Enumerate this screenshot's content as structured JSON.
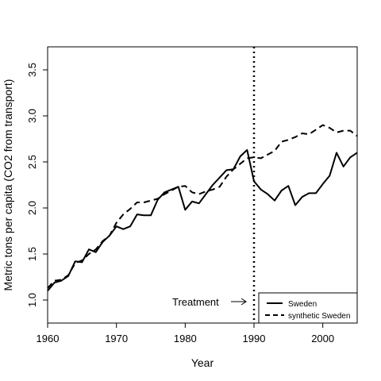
{
  "chart_data": {
    "type": "line",
    "xlabel": "Year",
    "ylabel": "Metric tons per capita (CO2 from transport)",
    "xlim": [
      1960,
      2005
    ],
    "ylim": [
      0.75,
      3.75
    ],
    "x_ticks": [
      1960,
      1970,
      1980,
      1990,
      2000
    ],
    "y_ticks": [
      1.0,
      1.5,
      2.0,
      2.5,
      3.0,
      3.5
    ],
    "x_tick_labels": [
      "1960",
      "1970",
      "1980",
      "1990",
      "2000"
    ],
    "y_tick_labels": [
      "1.0",
      "1.5",
      "2.0",
      "2.5",
      "3.0",
      "3.5"
    ],
    "x": [
      1960,
      1961,
      1962,
      1963,
      1964,
      1965,
      1966,
      1967,
      1968,
      1969,
      1970,
      1971,
      1972,
      1973,
      1974,
      1975,
      1976,
      1977,
      1978,
      1979,
      1980,
      1981,
      1982,
      1983,
      1984,
      1985,
      1986,
      1987,
      1988,
      1989,
      1990,
      1991,
      1992,
      1993,
      1994,
      1995,
      1996,
      1997,
      1998,
      1999,
      2000,
      2001,
      2002,
      2003,
      2004,
      2005
    ],
    "series": [
      {
        "name": "Sweden",
        "style": "solid",
        "values": [
          1.1,
          1.19,
          1.21,
          1.26,
          1.42,
          1.41,
          1.55,
          1.52,
          1.63,
          1.7,
          1.8,
          1.77,
          1.8,
          1.93,
          1.92,
          1.92,
          2.09,
          2.17,
          2.2,
          2.23,
          1.98,
          2.07,
          2.05,
          2.15,
          2.25,
          2.33,
          2.41,
          2.42,
          2.56,
          2.63,
          2.29,
          2.2,
          2.15,
          2.08,
          2.19,
          2.24,
          2.03,
          2.12,
          2.16,
          2.16,
          2.26,
          2.35,
          2.6,
          2.45,
          2.55,
          2.6
        ]
      },
      {
        "name": "synthetic Sweden",
        "style": "dashed",
        "values": [
          1.13,
          1.21,
          1.22,
          1.27,
          1.4,
          1.43,
          1.5,
          1.55,
          1.64,
          1.7,
          1.84,
          1.93,
          1.99,
          2.06,
          2.06,
          2.08,
          2.1,
          2.15,
          2.19,
          2.23,
          2.24,
          2.17,
          2.15,
          2.18,
          2.2,
          2.23,
          2.34,
          2.42,
          2.48,
          2.54,
          2.55,
          2.54,
          2.58,
          2.62,
          2.72,
          2.74,
          2.77,
          2.81,
          2.8,
          2.85,
          2.9,
          2.87,
          2.82,
          2.84,
          2.84,
          2.78
        ]
      }
    ],
    "treatment_year": 1990,
    "annotation": "Treatment",
    "legend_position": "bottom-right",
    "grid": false
  },
  "colors": {
    "line": "#000000",
    "background": "#ffffff"
  }
}
